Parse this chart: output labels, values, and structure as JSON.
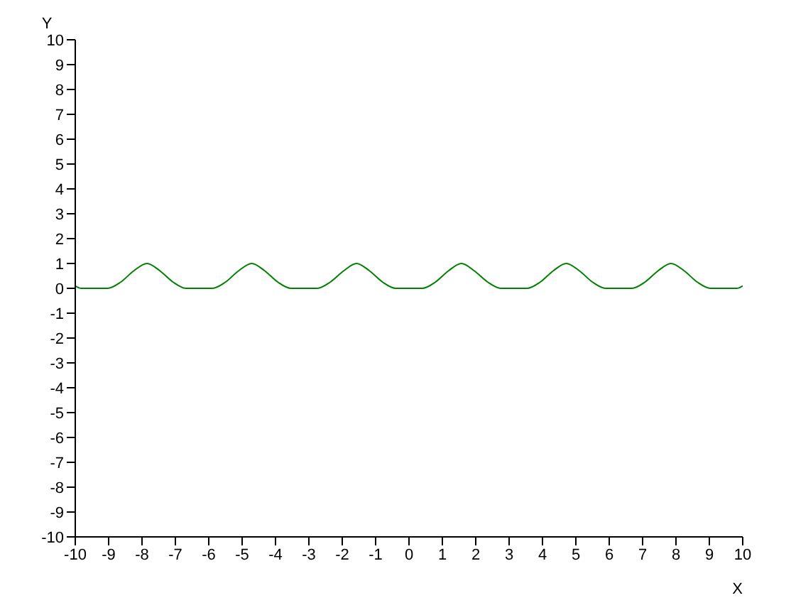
{
  "chart_data": {
    "type": "line",
    "xlabel": "X",
    "ylabel": "Y",
    "x": [
      -10,
      -9.82,
      -9.42,
      -9.03,
      -8.64,
      -8.25,
      -7.85,
      -7.46,
      -7.07,
      -6.68,
      -6.28,
      -5.89,
      -5.5,
      -5.11,
      -4.71,
      -4.32,
      -3.93,
      -3.53,
      -3.14,
      -2.75,
      -2.36,
      -1.96,
      -1.57,
      -1.18,
      -0.79,
      -0.39,
      0,
      0.39,
      0.79,
      1.18,
      1.57,
      1.96,
      2.36,
      2.75,
      3.14,
      3.53,
      3.93,
      4.32,
      4.71,
      5.11,
      5.5,
      5.89,
      6.28,
      6.68,
      7.07,
      7.46,
      7.85,
      8.25,
      8.64,
      9.03,
      9.42,
      9.82,
      10
    ],
    "series": [
      {
        "color": "#008000",
        "values": [
          0.1,
          0,
          0,
          0,
          0.25,
          0.7,
          1,
          0.7,
          0.25,
          0,
          0,
          0,
          0.25,
          0.7,
          1,
          0.7,
          0.25,
          0,
          0,
          0,
          0.25,
          0.7,
          1,
          0.7,
          0.25,
          0,
          0,
          0,
          0.25,
          0.7,
          1,
          0.7,
          0.25,
          0,
          0,
          0,
          0.25,
          0.7,
          1,
          0.7,
          0.25,
          0,
          0,
          0,
          0.25,
          0.7,
          1,
          0.7,
          0.25,
          0,
          0,
          0,
          0.1
        ]
      }
    ],
    "xlim": [
      -10,
      10
    ],
    "xticks": [
      -10,
      -9,
      -8,
      -7,
      -6,
      -5,
      -4,
      -3,
      -2,
      -1,
      0,
      1,
      2,
      3,
      4,
      5,
      6,
      7,
      8,
      9,
      10
    ],
    "ylim": [
      -10,
      10
    ],
    "yticks": [
      -10,
      -9,
      -8,
      -7,
      -6,
      -5,
      -4,
      -3,
      -2,
      -1,
      0,
      1,
      2,
      3,
      4,
      5,
      6,
      7,
      8,
      9,
      10
    ],
    "grid": false,
    "legend": false,
    "marker": "none",
    "line_style": "solid"
  }
}
